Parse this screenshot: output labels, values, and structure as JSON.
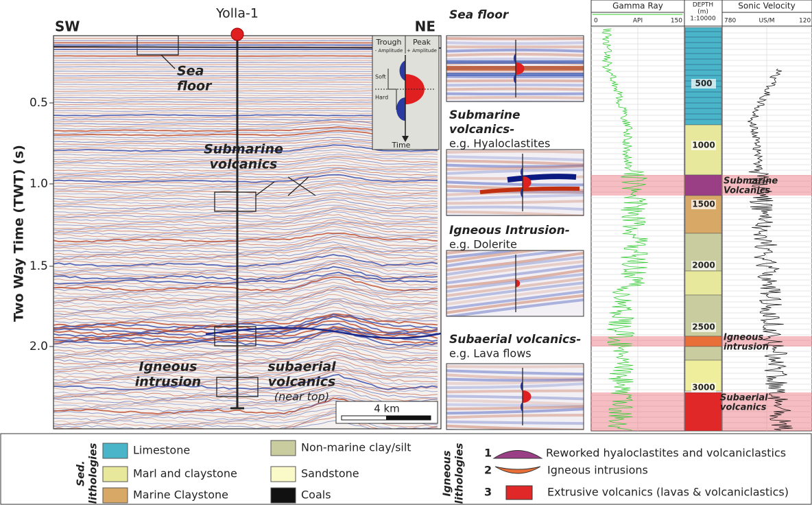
{
  "seismic": {
    "left_label": "SW",
    "right_label": "NE",
    "well": "Yolla-1",
    "y_axis_title": "Two Way Time (TWT) (s)",
    "y_ticks": [
      "0.5",
      "1.0",
      "1.5",
      "2.0"
    ],
    "annotations": [
      [
        "Sea",
        "floor"
      ],
      [
        "Submarine",
        "volcanics"
      ],
      [
        "Igneous",
        "intrusion"
      ],
      [
        "subaerial",
        "volcanics",
        "(near top)"
      ]
    ],
    "scale": "4 km",
    "wavelet": {
      "trough": "Trough",
      "peak": "Peak",
      "minus": "- Amplitude",
      "plus": "+ Amplitude",
      "soft": "Soft",
      "hard": "Hard",
      "time": "Time"
    }
  },
  "examples": [
    {
      "title": [
        "Sea floor"
      ]
    },
    {
      "title": [
        "Submarine",
        "volcanics-"
      ],
      "subtitle": "e.g. Hyaloclastites"
    },
    {
      "title": [
        "Igneous Intrusion-"
      ],
      "subtitle": "e.g. Dolerite"
    },
    {
      "title": [
        "Subaerial volcanics-"
      ],
      "subtitle": "e.g. Lava flows"
    }
  ],
  "logs": {
    "gamma": {
      "name": "Gamma Ray",
      "min": "0",
      "unit": "API",
      "max": "150"
    },
    "depth": {
      "title": [
        "DEPTH",
        "(m)",
        "1:10000"
      ],
      "marks": [
        "500",
        "1000",
        "1500",
        "2000",
        "2500",
        "3000"
      ]
    },
    "sonic": {
      "name": "Sonic Velocity",
      "min": "780",
      "unit": "US/M",
      "max": "120"
    },
    "zones": [
      [
        "Submarine",
        "Volcanics"
      ],
      [
        "Igneous",
        "intrusion"
      ],
      [
        "Subaerial",
        "volcanics"
      ]
    ]
  },
  "legend": {
    "sed_title": [
      "Sed.",
      "lithologies"
    ],
    "sed_items": [
      "Limestone",
      "Marl and claystone",
      "Marine Claystone",
      "Non-marine clay/silt",
      "Sandstone",
      "Coals"
    ],
    "ign_title": [
      "Igneous",
      "lithologies"
    ],
    "ign_items": [
      {
        "num": "1",
        "label": "Reworked hyaloclastites and volcaniclastics"
      },
      {
        "num": "2",
        "label": "Igneous intrusions"
      },
      {
        "num": "3",
        "label": "Extrusive volcanics (lavas & volcaniclastics)"
      }
    ]
  }
}
